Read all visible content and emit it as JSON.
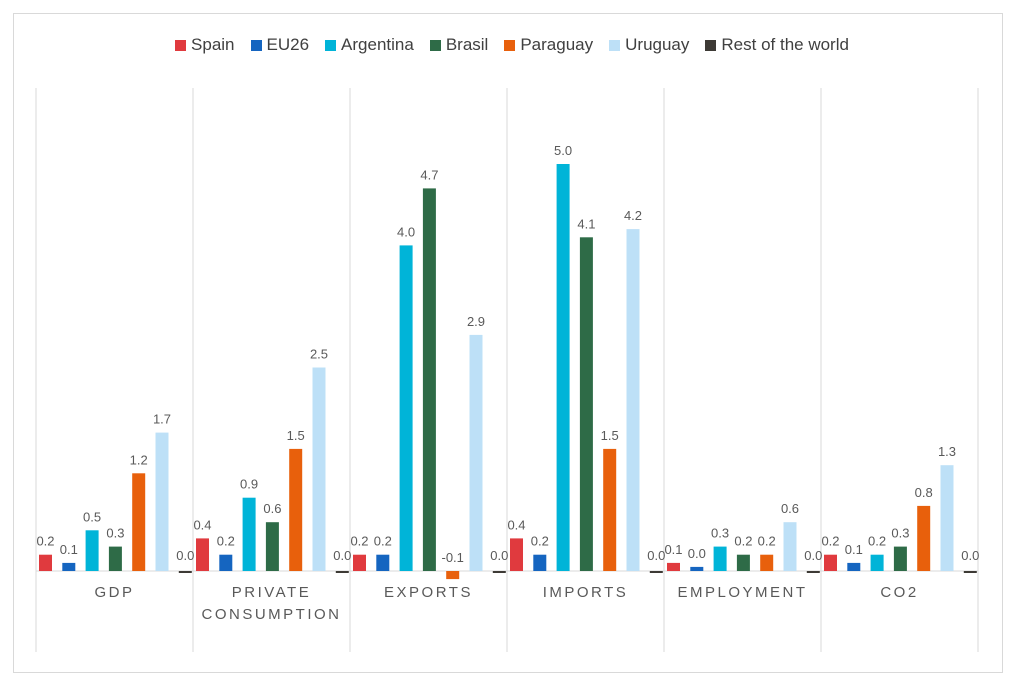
{
  "chart_data": {
    "type": "bar",
    "title": "",
    "xlabel": "",
    "ylabel": "",
    "ylim": [
      -0.1,
      5.0
    ],
    "grid": false,
    "legend_position": "top",
    "categories": [
      [
        "GDP"
      ],
      [
        "PRIVATE",
        "CONSUMPTION"
      ],
      [
        "EXPORTS"
      ],
      [
        "IMPORTS"
      ],
      [
        "EMPLOYMENT"
      ],
      [
        "CO2"
      ]
    ],
    "series": [
      {
        "name": "Spain",
        "color": "#e03a3e",
        "values": [
          0.2,
          0.4,
          0.2,
          0.4,
          0.1,
          0.2
        ],
        "labels": [
          "0.2",
          "0.4",
          "0.2",
          "0.4",
          "0.1",
          "0.2"
        ]
      },
      {
        "name": "EU26",
        "color": "#1565c0",
        "values": [
          0.1,
          0.2,
          0.2,
          0.2,
          0.05,
          0.1
        ],
        "labels": [
          "0.1",
          "0.2",
          "0.2",
          "0.2",
          "0.0",
          "0.1"
        ]
      },
      {
        "name": "Argentina",
        "color": "#00b4d8",
        "values": [
          0.5,
          0.9,
          4.0,
          5.0,
          0.3,
          0.2
        ],
        "labels": [
          "0.5",
          "0.9",
          "4.0",
          "5.0",
          "0.3",
          "0.2"
        ]
      },
      {
        "name": "Brasil",
        "color": "#2e6b47",
        "values": [
          0.3,
          0.6,
          4.7,
          4.1,
          0.2,
          0.3
        ],
        "labels": [
          "0.3",
          "0.6",
          "4.7",
          "4.1",
          "0.2",
          "0.3"
        ]
      },
      {
        "name": "Paraguay",
        "color": "#e8600c",
        "values": [
          1.2,
          1.5,
          -0.1,
          1.5,
          0.2,
          0.8
        ],
        "labels": [
          "1.2",
          "1.5",
          "-0.1",
          "1.5",
          "0.2",
          "0.8"
        ]
      },
      {
        "name": "Uruguay",
        "color": "#bde0f7",
        "values": [
          1.7,
          2.5,
          2.9,
          4.2,
          0.6,
          1.3
        ],
        "labels": [
          "1.7",
          "2.5",
          "2.9",
          "4.2",
          "0.6",
          "1.3"
        ]
      },
      {
        "name": "Rest of the world",
        "color": "#3d3a35",
        "values": [
          0.0,
          0.0,
          0.0,
          0.0,
          0.0,
          0.0
        ],
        "labels": [
          "0.0",
          "0.0",
          "0.0",
          "0.0",
          "0.0",
          "0.0"
        ]
      }
    ]
  }
}
